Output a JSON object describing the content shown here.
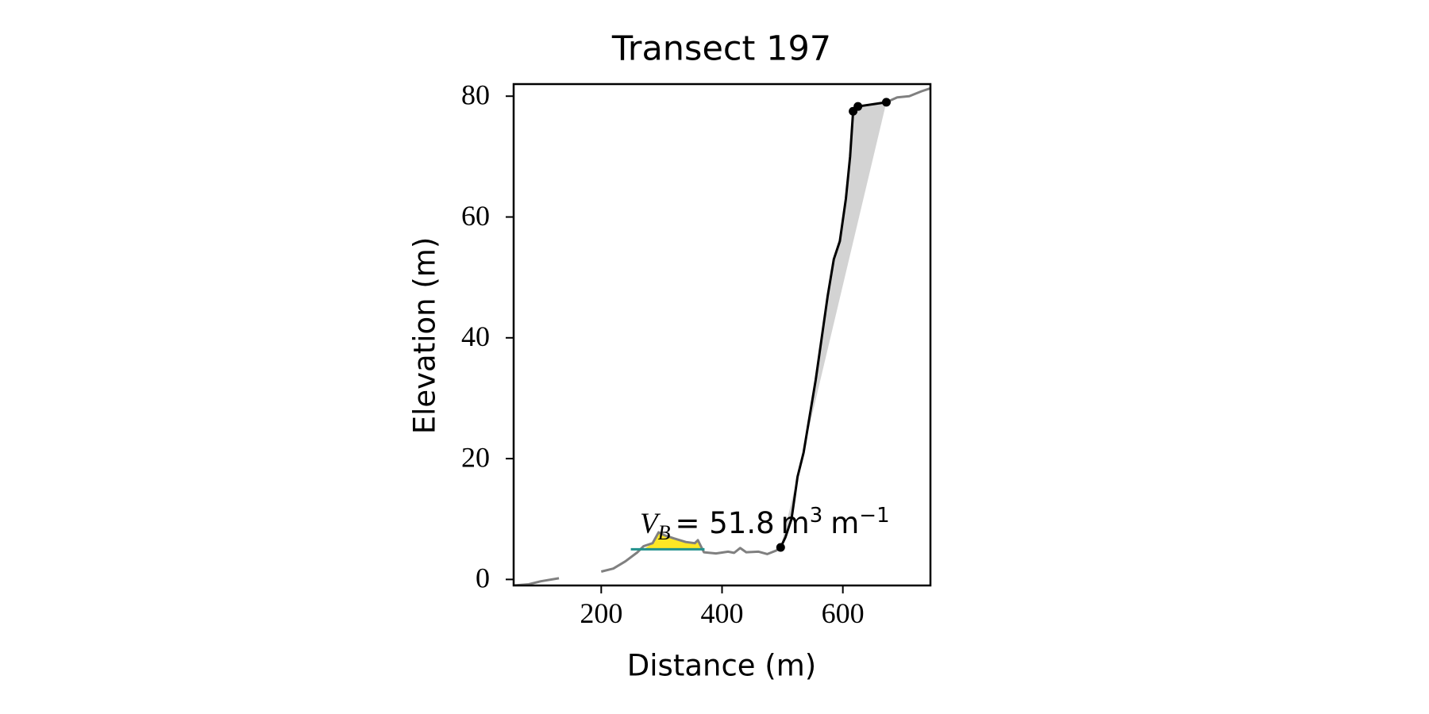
{
  "chart_data": {
    "type": "line",
    "title": "Transect 197",
    "xlabel": "Distance (m)",
    "ylabel": "Elevation (m)",
    "xlim": [
      55,
      745
    ],
    "ylim": [
      -1,
      82
    ],
    "xticks": [
      200,
      400,
      600
    ],
    "yticks": [
      0,
      20,
      40,
      60,
      80
    ],
    "grid": false,
    "annotation": {
      "symbol": "V",
      "subscript": "B",
      "equals": "= 51.8",
      "unit": "m",
      "power": "3",
      "unit2": "m",
      "power2": "−1"
    },
    "series": [
      {
        "style": "fill",
        "color": "#d3d3d3",
        "x": [
          497,
          505,
          515,
          525,
          535,
          545,
          555,
          565,
          575,
          585,
          595,
          605,
          612,
          617,
          625,
          672
        ],
        "values": [
          5.3,
          7,
          10,
          17,
          21,
          27,
          33,
          40,
          47,
          53,
          56,
          63,
          70,
          77.5,
          78.3,
          79
        ]
      },
      {
        "style": "fill",
        "color": "#fde725",
        "x": [
          270,
          285,
          295,
          305,
          320,
          340,
          355,
          360,
          365
        ],
        "values": [
          5,
          6,
          7.8,
          7.3,
          6.8,
          6.2,
          6,
          6.5,
          5
        ]
      },
      {
        "style": "line",
        "color": "#808080",
        "x": [
          55,
          80,
          100,
          130,
          200,
          200,
          220,
          240,
          260,
          270,
          285,
          295,
          305,
          320,
          340,
          355,
          360,
          370,
          390,
          410,
          420,
          430,
          440,
          460,
          475,
          490,
          497,
          672,
          672,
          690,
          710,
          730,
          745
        ],
        "values": [
          -1,
          -0.8,
          -0.3,
          0.2,
          null,
          1.3,
          1.8,
          3,
          4.5,
          5.5,
          6,
          7.8,
          7.3,
          6.8,
          6.2,
          6,
          6.5,
          4.5,
          4.3,
          4.6,
          4.4,
          5.2,
          4.5,
          4.6,
          4.2,
          4.8,
          5.3,
          null,
          79,
          79.8,
          80,
          80.8,
          81.3
        ]
      },
      {
        "style": "line",
        "color": "#21918c",
        "x": [
          249,
          371
        ],
        "values": [
          5,
          5
        ]
      },
      {
        "style": "line",
        "color": "#000000",
        "x": [
          497,
          505,
          515,
          525,
          535,
          545,
          555,
          565,
          575,
          585,
          595,
          605,
          612,
          617,
          625,
          672
        ],
        "values": [
          5.3,
          7,
          10,
          17,
          21,
          27,
          33,
          40,
          47,
          53,
          56,
          63,
          70,
          77.5,
          78.3,
          79
        ]
      },
      {
        "style": "markers",
        "color": "#000000",
        "x": [
          497,
          617,
          625,
          672
        ],
        "values": [
          5.3,
          77.5,
          78.3,
          79
        ]
      }
    ]
  }
}
